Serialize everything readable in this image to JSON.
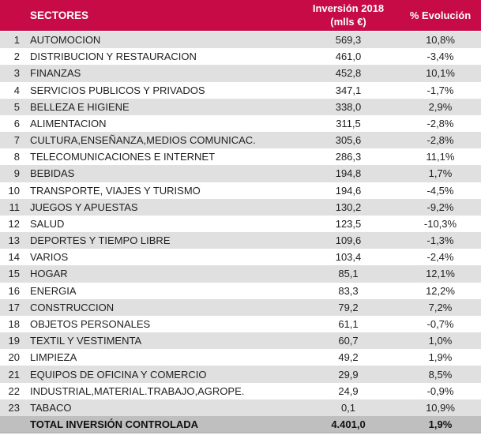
{
  "header": {
    "sectores": "SECTORES",
    "inversion_line1": "Inversión 2018",
    "inversion_line2": "(mlls €)",
    "evolucion": "% Evolución"
  },
  "colors": {
    "header_bg": "#C60B46",
    "header_text": "#FFFFFF",
    "row_stripe": "#E0E0E0",
    "row_white": "#FFFFFF",
    "total_bg": "#BFBFBF",
    "body_text": "#1F1F1F"
  },
  "chart_data": {
    "type": "table",
    "columns": [
      "#",
      "SECTORES",
      "Inversión 2018 (mlls €)",
      "% Evolución"
    ],
    "rows": [
      [
        "1",
        "AUTOMOCION",
        "569,3",
        "10,8%"
      ],
      [
        "2",
        "DISTRIBUCION Y RESTAURACION",
        "461,0",
        "-3,4%"
      ],
      [
        "3",
        "FINANZAS",
        "452,8",
        "10,1%"
      ],
      [
        "4",
        "SERVICIOS PUBLICOS Y PRIVADOS",
        "347,1",
        "-1,7%"
      ],
      [
        "5",
        "BELLEZA E HIGIENE",
        "338,0",
        "2,9%"
      ],
      [
        "6",
        "ALIMENTACION",
        "311,5",
        "-2,8%"
      ],
      [
        "7",
        "CULTURA,ENSEÑANZA,MEDIOS COMUNICAC.",
        "305,6",
        "-2,8%"
      ],
      [
        "8",
        "TELECOMUNICACIONES E INTERNET",
        "286,3",
        "11,1%"
      ],
      [
        "9",
        "BEBIDAS",
        "194,8",
        "1,7%"
      ],
      [
        "10",
        "TRANSPORTE, VIAJES Y TURISMO",
        "194,6",
        "-4,5%"
      ],
      [
        "11",
        "JUEGOS Y APUESTAS",
        "130,2",
        "-9,2%"
      ],
      [
        "12",
        "SALUD",
        "123,5",
        "-10,3%"
      ],
      [
        "13",
        "DEPORTES Y TIEMPO LIBRE",
        "109,6",
        "-1,3%"
      ],
      [
        "14",
        "VARIOS",
        "103,4",
        "-2,4%"
      ],
      [
        "15",
        "HOGAR",
        "85,1",
        "12,1%"
      ],
      [
        "16",
        "ENERGIA",
        "83,3",
        "12,2%"
      ],
      [
        "17",
        "CONSTRUCCION",
        "79,2",
        "7,2%"
      ],
      [
        "18",
        "OBJETOS PERSONALES",
        "61,1",
        "-0,7%"
      ],
      [
        "19",
        "TEXTIL Y VESTIMENTA",
        "60,7",
        "1,0%"
      ],
      [
        "20",
        "LIMPIEZA",
        "49,2",
        "1,9%"
      ],
      [
        "21",
        "EQUIPOS DE OFICINA Y COMERCIO",
        "29,9",
        "8,5%"
      ],
      [
        "22",
        "INDUSTRIAL,MATERIAL.TRABAJO,AGROPE.",
        "24,9",
        "-0,9%"
      ],
      [
        "23",
        "TABACO",
        "0,1",
        "10,9%"
      ]
    ],
    "total_row": [
      "TOTAL INVERSIÓN CONTROLADA",
      "4.401,0",
      "1,9%"
    ]
  }
}
